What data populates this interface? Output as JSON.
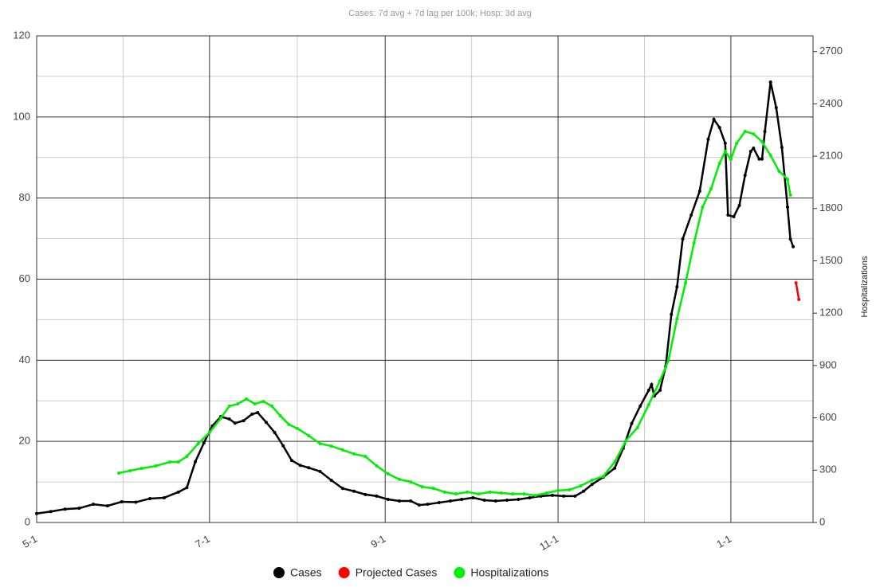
{
  "chart_data": {
    "type": "line",
    "title": "Cases: 7d avg + 7d lag per 100k; Hosp: 3d avg",
    "y2label": "Hospitalizations",
    "xlim": [
      0,
      274
    ],
    "xticks": [
      {
        "value": 0,
        "label": "5-1"
      },
      {
        "value": 61,
        "label": "7-1"
      },
      {
        "value": 123,
        "label": "9-1"
      },
      {
        "value": 184,
        "label": "11-1"
      },
      {
        "value": 245,
        "label": "1-1"
      }
    ],
    "ylim": [
      0,
      120
    ],
    "yticks": [
      0,
      20,
      40,
      60,
      80,
      100,
      120
    ],
    "y2lim": [
      0,
      2790
    ],
    "y2ticks": [
      0,
      300,
      600,
      900,
      1200,
      1500,
      1800,
      2100,
      2400,
      2700
    ],
    "grid": true,
    "legend": "bottom",
    "series": [
      {
        "name": "Cases",
        "color": "#000000",
        "x": [
          0,
          5,
          10,
          15,
          20,
          25,
          30,
          35,
          40,
          45,
          50,
          53,
          56,
          59,
          62,
          65,
          68,
          70,
          73,
          76,
          78,
          81,
          84,
          87,
          90,
          93,
          96,
          100,
          104,
          108,
          112,
          116,
          120,
          124,
          128,
          132,
          135,
          138,
          142,
          146,
          150,
          154,
          158,
          162,
          166,
          170,
          174,
          178,
          182,
          186,
          190,
          193,
          196,
          200,
          204,
          207,
          210,
          213,
          216,
          217,
          218,
          220,
          222,
          224,
          226,
          228,
          231,
          234,
          237,
          239,
          241,
          243,
          244,
          246,
          248,
          250,
          252,
          253,
          255,
          256,
          257,
          259,
          261,
          263,
          265,
          266,
          267
        ],
        "values": [
          2.2,
          2.7,
          3.3,
          3.5,
          4.5,
          4.1,
          5.1,
          5,
          5.9,
          6.1,
          7.5,
          8.6,
          15,
          19.6,
          23.8,
          26.1,
          25.5,
          24.5,
          25.1,
          26.7,
          27.1,
          24.7,
          22.2,
          18.9,
          15.3,
          14.1,
          13.5,
          12.6,
          10.4,
          8.4,
          7.7,
          6.9,
          6.5,
          5.7,
          5.3,
          5.3,
          4.3,
          4.5,
          4.9,
          5.3,
          5.7,
          6.1,
          5.5,
          5.3,
          5.5,
          5.7,
          6.1,
          6.5,
          6.7,
          6.5,
          6.5,
          7.7,
          9.4,
          11.2,
          13.4,
          18.3,
          24.4,
          28.7,
          32.6,
          34,
          31.2,
          32.6,
          38.5,
          51.3,
          58.1,
          69.9,
          75.8,
          81.7,
          94.5,
          99.4,
          97.4,
          93.5,
          75.8,
          75.4,
          78.2,
          85.6,
          91.5,
          92.3,
          89.6,
          89.6,
          96.4,
          108.6,
          102.3,
          92.5,
          77.8,
          69.9,
          68
        ]
      },
      {
        "name": "Projected Cases",
        "color": "#ff0000",
        "x": [
          268,
          269
        ],
        "values": [
          59.1,
          55
        ]
      },
      {
        "name": "Hospitalizations",
        "color": "#00ee00",
        "axis": "y2",
        "x": [
          29,
          33,
          37,
          42,
          47,
          50,
          53,
          57,
          61,
          65,
          68,
          71,
          74,
          77,
          80,
          83,
          86,
          89,
          92,
          96,
          100,
          104,
          108,
          112,
          116,
          120,
          124,
          128,
          132,
          136,
          140,
          144,
          148,
          152,
          156,
          160,
          164,
          168,
          172,
          176,
          180,
          184,
          188,
          192,
          196,
          200,
          204,
          208,
          212,
          216,
          220,
          223,
          226,
          229,
          232,
          235,
          238,
          241,
          243,
          245,
          247,
          250,
          253,
          256,
          259,
          262,
          265,
          266
        ],
        "values": [
          283,
          297,
          310,
          324,
          347,
          347,
          379,
          452,
          516,
          598,
          667,
          680,
          708,
          680,
          694,
          667,
          612,
          562,
          539,
          498,
          452,
          438,
          416,
          393,
          379,
          324,
          279,
          247,
          233,
          205,
          196,
          174,
          164,
          174,
          164,
          174,
          169,
          164,
          164,
          155,
          169,
          183,
          187,
          210,
          242,
          265,
          347,
          470,
          543,
          676,
          813,
          931,
          1169,
          1374,
          1603,
          1808,
          1913,
          2059,
          2128,
          2082,
          2173,
          2242,
          2228,
          2183,
          2105,
          2014,
          1968,
          1877
        ]
      }
    ]
  }
}
